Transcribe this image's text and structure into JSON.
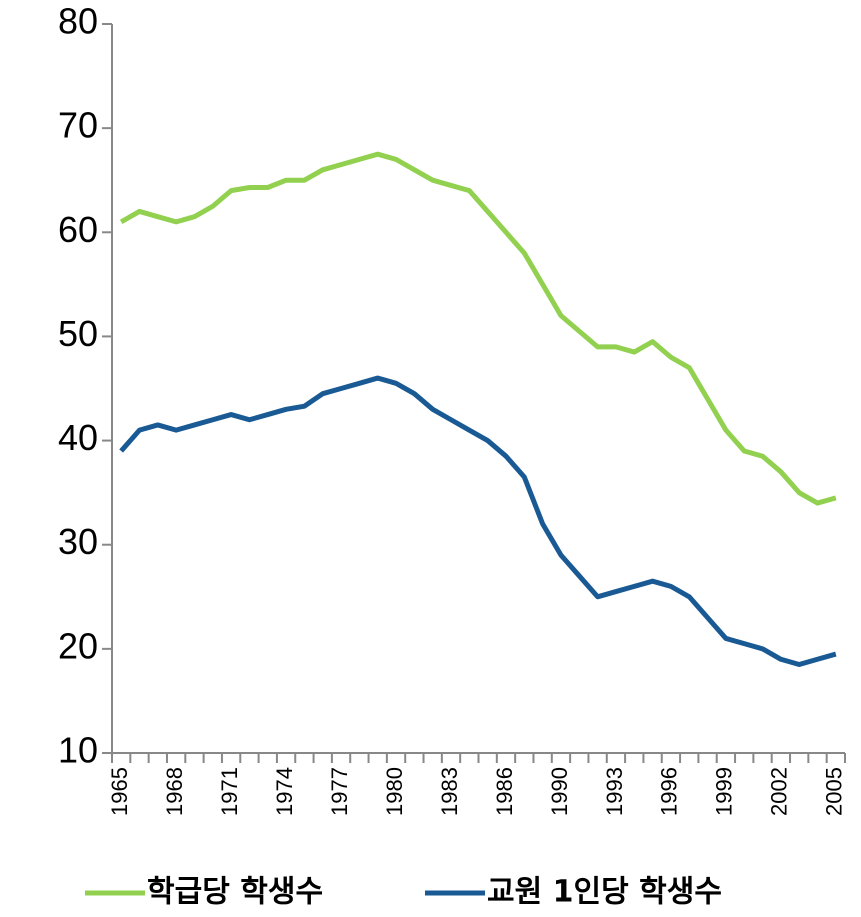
{
  "chart_data": {
    "type": "line",
    "categories": [
      "1965",
      null,
      null,
      "1968",
      null,
      null,
      "1971",
      null,
      null,
      "1974",
      null,
      null,
      "1977",
      null,
      null,
      "1980",
      null,
      null,
      "1983",
      null,
      null,
      "1986",
      null,
      null,
      "1990",
      null,
      null,
      "1993",
      null,
      null,
      "1996",
      null,
      null,
      "1999",
      null,
      null,
      "2002",
      null,
      null,
      "2005"
    ],
    "series": [
      {
        "name": "학급당 학생수",
        "color": "#92d050",
        "values": [
          61,
          62,
          61.5,
          61,
          61.5,
          62.5,
          64,
          64.3,
          64.3,
          65,
          65,
          66,
          66.5,
          67,
          67.5,
          67,
          66,
          65,
          64.5,
          64,
          62,
          60,
          58,
          55,
          52,
          50.5,
          49,
          49,
          48.5,
          49.5,
          48,
          47,
          44,
          41,
          39,
          38.5,
          37,
          35,
          34,
          34.5
        ]
      },
      {
        "name": "교원 1인당 학생수",
        "color": "#1a5a94",
        "values": [
          39,
          41,
          41.5,
          41,
          41.5,
          42,
          42.5,
          42,
          42.5,
          43,
          43.3,
          44.5,
          45,
          45.5,
          46,
          45.5,
          44.5,
          43,
          42,
          41,
          40,
          38.5,
          36.5,
          32,
          29,
          27,
          25,
          25.5,
          26,
          26.5,
          26,
          25,
          23,
          21,
          20.5,
          20,
          19,
          18.5,
          19,
          19.5
        ]
      }
    ],
    "ylim": [
      10,
      80
    ],
    "yticks": [
      10,
      20,
      30,
      40,
      50,
      60,
      70,
      80
    ],
    "legend": "bottom"
  }
}
